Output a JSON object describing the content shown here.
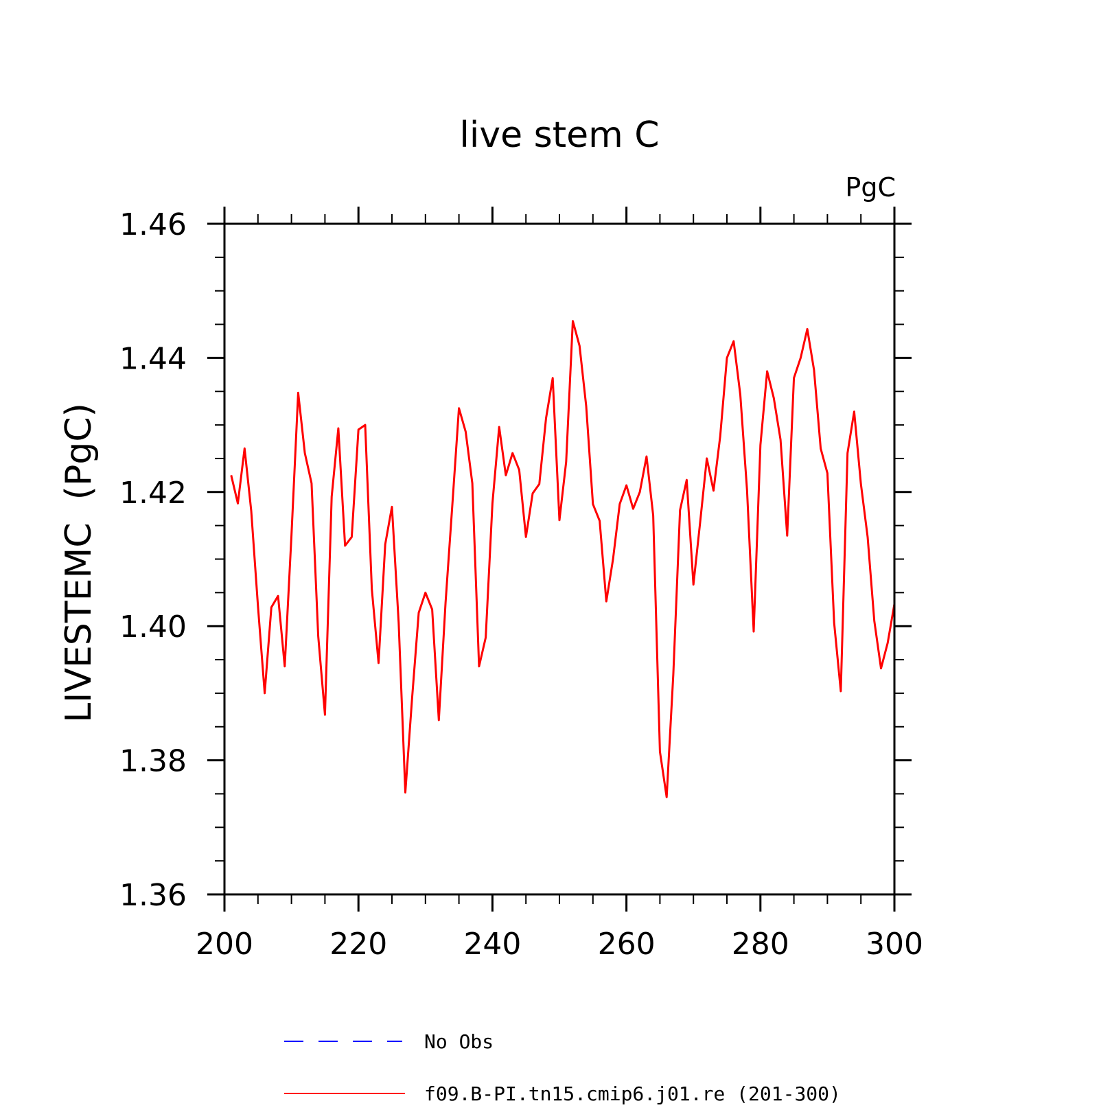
{
  "chart_data": {
    "type": "line",
    "title": "live stem C",
    "units_label": "PgC",
    "ylabel": "LIVESTEMC  (PgC)",
    "xlabel": "",
    "xlim": [
      200,
      300
    ],
    "ylim": [
      1.36,
      1.46
    ],
    "xticks": [
      200,
      220,
      240,
      260,
      280,
      300
    ],
    "xtick_labels": [
      "200",
      "220",
      "240",
      "260",
      "280",
      "300"
    ],
    "yticks": [
      1.36,
      1.38,
      1.4,
      1.42,
      1.44,
      1.46
    ],
    "ytick_labels": [
      "1.36",
      "1.38",
      "1.40",
      "1.42",
      "1.44",
      "1.46"
    ],
    "x_minor_step": 5,
    "y_minor_step": 0.005,
    "grid": false,
    "legend": [
      {
        "label": "No Obs",
        "color": "#0000ff",
        "style": "dashed"
      },
      {
        "label": "f09.B-PI.tn15.cmip6.j01.re (201-300)",
        "color": "#ff0000",
        "style": "solid"
      }
    ],
    "series": [
      {
        "name": "f09.B-PI.tn15.cmip6.j01.re (201-300)",
        "color": "#ff0000",
        "x": [
          201,
          202,
          203,
          204,
          205,
          206,
          207,
          208,
          209,
          210,
          211,
          212,
          213,
          214,
          215,
          216,
          217,
          218,
          219,
          220,
          221,
          222,
          223,
          224,
          225,
          226,
          227,
          228,
          229,
          230,
          231,
          232,
          233,
          234,
          235,
          236,
          237,
          238,
          239,
          240,
          241,
          242,
          243,
          244,
          245,
          246,
          247,
          248,
          249,
          250,
          251,
          252,
          253,
          254,
          255,
          256,
          257,
          258,
          259,
          260,
          261,
          262,
          263,
          264,
          265,
          266,
          267,
          268,
          269,
          270,
          271,
          272,
          273,
          274,
          275,
          276,
          277,
          278,
          279,
          280,
          281,
          282,
          283,
          284,
          285,
          286,
          287,
          288,
          289,
          290,
          291,
          292,
          293,
          294,
          295,
          296,
          297,
          298,
          299,
          300
        ],
        "values": [
          1.4225,
          1.4183,
          1.4265,
          1.4172,
          1.403,
          1.39,
          1.4028,
          1.4045,
          1.394,
          1.4135,
          1.4348,
          1.4258,
          1.4213,
          1.3985,
          1.3868,
          1.4193,
          1.4295,
          1.412,
          1.4133,
          1.4293,
          1.43,
          1.4055,
          1.3945,
          1.4122,
          1.4178,
          1.4005,
          1.3752,
          1.3892,
          1.402,
          1.405,
          1.4025,
          1.386,
          1.4035,
          1.4178,
          1.4325,
          1.429,
          1.4213,
          1.394,
          1.3983,
          1.4183,
          1.4297,
          1.4225,
          1.4258,
          1.4233,
          1.4133,
          1.4198,
          1.4212,
          1.431,
          1.437,
          1.4158,
          1.4245,
          1.4455,
          1.4418,
          1.4328,
          1.4182,
          1.4157,
          1.4037,
          1.41,
          1.4182,
          1.421,
          1.4175,
          1.42,
          1.4253,
          1.4165,
          1.3813,
          1.3745,
          1.3928,
          1.4173,
          1.4218,
          1.4062,
          1.4155,
          1.425,
          1.4202,
          1.4283,
          1.44,
          1.4425,
          1.4345,
          1.4203,
          1.3992,
          1.427,
          1.438,
          1.434,
          1.4278,
          1.4135,
          1.437,
          1.44,
          1.4443,
          1.4382,
          1.4265,
          1.4228,
          1.4005,
          1.3903,
          1.4258,
          1.432,
          1.4212,
          1.4133,
          1.4008,
          1.3937,
          1.3975,
          1.4033
        ]
      }
    ]
  }
}
